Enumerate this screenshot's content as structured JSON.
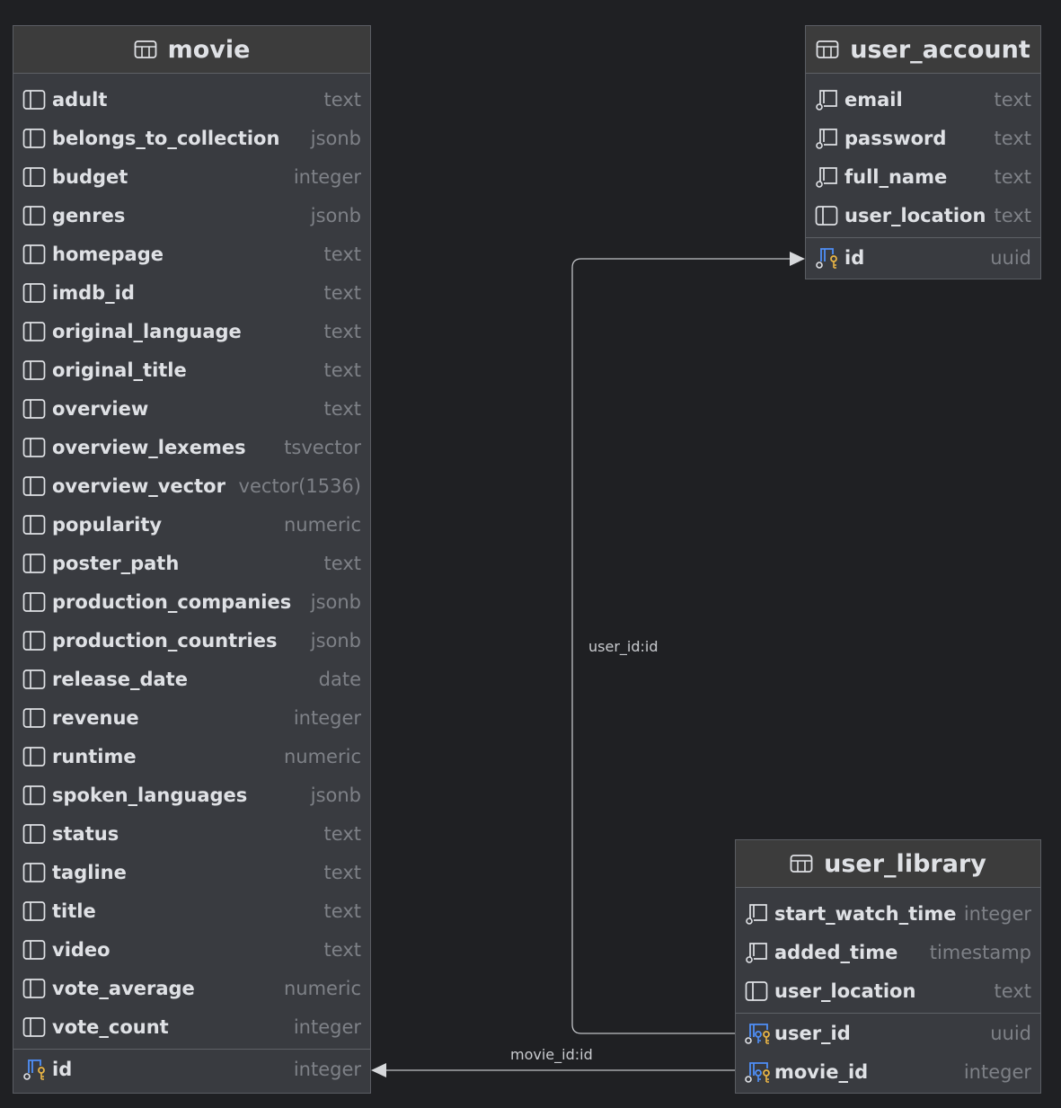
{
  "colors": {
    "background": "#1f2023",
    "table_body": "#393b40",
    "table_header": "#3c3c3c",
    "text": "#dfe1e5",
    "type_text": "#7e8187",
    "key_blue": "#4f8ff7",
    "key_yellow": "#e9b545"
  },
  "tables": {
    "movie": {
      "title": "movie",
      "icon": "table-icon",
      "columns": [
        {
          "name": "adult",
          "type": "text",
          "icon": "column-icon"
        },
        {
          "name": "belongs_to_collection",
          "type": "jsonb",
          "icon": "column-icon"
        },
        {
          "name": "budget",
          "type": "integer",
          "icon": "column-icon"
        },
        {
          "name": "genres",
          "type": "jsonb",
          "icon": "column-icon"
        },
        {
          "name": "homepage",
          "type": "text",
          "icon": "column-icon"
        },
        {
          "name": "imdb_id",
          "type": "text",
          "icon": "column-icon"
        },
        {
          "name": "original_language",
          "type": "text",
          "icon": "column-icon"
        },
        {
          "name": "original_title",
          "type": "text",
          "icon": "column-icon"
        },
        {
          "name": "overview",
          "type": "text",
          "icon": "column-icon"
        },
        {
          "name": "overview_lexemes",
          "type": "tsvector",
          "icon": "column-icon"
        },
        {
          "name": "overview_vector",
          "type": "vector(1536)",
          "icon": "column-icon"
        },
        {
          "name": "popularity",
          "type": "numeric",
          "icon": "column-icon"
        },
        {
          "name": "poster_path",
          "type": "text",
          "icon": "column-icon"
        },
        {
          "name": "production_companies",
          "type": "jsonb",
          "icon": "column-icon"
        },
        {
          "name": "production_countries",
          "type": "jsonb",
          "icon": "column-icon"
        },
        {
          "name": "release_date",
          "type": "date",
          "icon": "column-icon"
        },
        {
          "name": "revenue",
          "type": "integer",
          "icon": "column-icon"
        },
        {
          "name": "runtime",
          "type": "numeric",
          "icon": "column-icon"
        },
        {
          "name": "spoken_languages",
          "type": "jsonb",
          "icon": "column-icon"
        },
        {
          "name": "status",
          "type": "text",
          "icon": "column-icon"
        },
        {
          "name": "tagline",
          "type": "text",
          "icon": "column-icon"
        },
        {
          "name": "title",
          "type": "text",
          "icon": "column-icon"
        },
        {
          "name": "video",
          "type": "text",
          "icon": "column-icon"
        },
        {
          "name": "vote_average",
          "type": "numeric",
          "icon": "column-icon"
        },
        {
          "name": "vote_count",
          "type": "integer",
          "icon": "column-icon"
        }
      ],
      "keys": [
        {
          "name": "id",
          "type": "integer",
          "icon": "primary-key-icon"
        }
      ]
    },
    "user_account": {
      "title": "user_account",
      "icon": "table-icon",
      "columns": [
        {
          "name": "email",
          "type": "text",
          "icon": "not-null-column-icon"
        },
        {
          "name": "password",
          "type": "text",
          "icon": "not-null-column-icon"
        },
        {
          "name": "full_name",
          "type": "text",
          "icon": "not-null-column-icon"
        },
        {
          "name": "user_location",
          "type": "text",
          "icon": "column-icon"
        }
      ],
      "keys": [
        {
          "name": "id",
          "type": "uuid",
          "icon": "primary-key-icon"
        }
      ]
    },
    "user_library": {
      "title": "user_library",
      "icon": "table-icon",
      "columns": [
        {
          "name": "start_watch_time",
          "type": "integer",
          "icon": "not-null-column-icon"
        },
        {
          "name": "added_time",
          "type": "timestamp",
          "icon": "not-null-column-icon"
        },
        {
          "name": "user_location",
          "type": "text",
          "icon": "column-icon"
        }
      ],
      "keys": [
        {
          "name": "user_id",
          "type": "uuid",
          "icon": "primary-foreign-key-icon"
        },
        {
          "name": "movie_id",
          "type": "integer",
          "icon": "primary-foreign-key-icon"
        }
      ]
    }
  },
  "relations": [
    {
      "label": "user_id:id",
      "from": "user_library.user_id",
      "to": "user_account.id"
    },
    {
      "label": "movie_id:id",
      "from": "user_library.movie_id",
      "to": "movie.id"
    }
  ]
}
